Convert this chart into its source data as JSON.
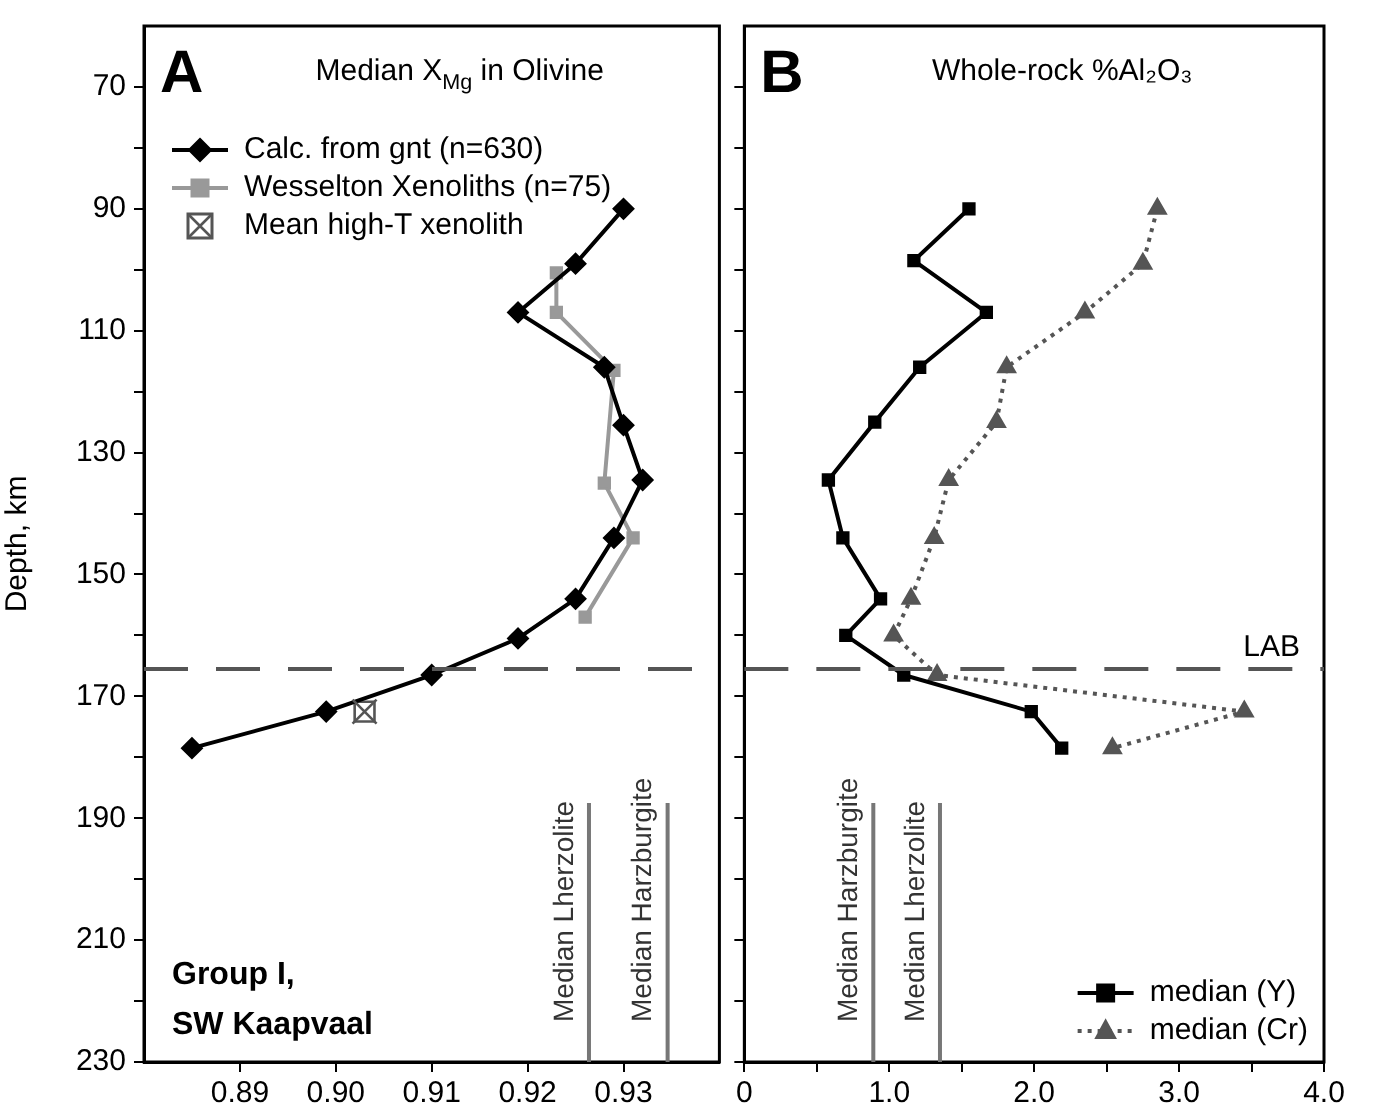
{
  "chart_data": [
    {
      "type": "line",
      "title": "Median X$_{Mg}$ in Olivine",
      "ylabel": "Depth, km",
      "xlim": [
        0.88,
        0.94
      ],
      "xticks": [
        0.89,
        {
          "value": 0.9,
          "label": "0.90"
        },
        0.91,
        0.92,
        0.93
      ],
      "ylim": [
        230,
        60
      ],
      "yticks": [
        70,
        {
          "value": 80,
          "label": null
        },
        90,
        {
          "value": 100,
          "label": null
        },
        110,
        {
          "value": 120,
          "label": null
        },
        130,
        {
          "value": 140,
          "label": null
        },
        150,
        {
          "value": 160,
          "label": null
        },
        170,
        {
          "value": 180,
          "label": null
        },
        190,
        {
          "value": 200,
          "label": null
        },
        210,
        {
          "value": 220,
          "label": null
        },
        230
      ],
      "legend": "top left",
      "series": [
        {
          "name": "Calc. from gnt (n=630)",
          "color": "#000000",
          "marker": "diamond",
          "x": [
            0.93,
            0.925,
            0.919,
            0.928,
            0.93,
            0.932,
            0.929,
            0.925,
            0.919,
            0.91,
            0.899,
            0.885
          ],
          "values": [
            90,
            99,
            107,
            116,
            125.5,
            134.5,
            144,
            154,
            160.5,
            166.5,
            172.5,
            178.5
          ]
        },
        {
          "name": "Wesselton Xenoliths (n=75)",
          "color": "#999999",
          "marker": "square",
          "x": [
            0.923,
            0.923,
            0.929,
            0.928,
            0.931,
            0.926
          ],
          "values": [
            100.5,
            107,
            116.5,
            135,
            144,
            157
          ]
        },
        {
          "name": "Mean high-T xenolith",
          "type": "scatter",
          "color": "#555555",
          "marker": "square",
          "x": [
            0.903
          ],
          "values": [
            172.5
          ]
        }
      ],
      "ref_lines": [
        {
          "axis": "y",
          "value": 165.5,
          "line_style": "dashed",
          "color": "#555555"
        },
        {
          "axis": "x",
          "value": 0.9264,
          "label": "Median Lherzolite",
          "color": "#777777"
        },
        {
          "axis": "x",
          "value": 0.9346,
          "label": "Median Harzburgite",
          "color": "#777777"
        }
      ],
      "annotations": [
        "A",
        "Group I,\nSW Kaapvaal"
      ]
    },
    {
      "type": "line",
      "title": "Whole-rock %Al₂O₃",
      "xlim": [
        0,
        4
      ],
      "xticks": [
        0,
        {
          "value": 0.5,
          "label": null
        },
        {
          "value": 1,
          "label": "1.0"
        },
        {
          "value": 1.5,
          "label": null
        },
        {
          "value": 2,
          "label": "2.0"
        },
        {
          "value": 2.5,
          "label": null
        },
        {
          "value": 3,
          "label": "3.0"
        },
        {
          "value": 3.5,
          "label": null
        },
        {
          "value": 4,
          "label": "4.0"
        }
      ],
      "ylim": [
        230,
        60
      ],
      "yticks": [
        70,
        80,
        90,
        100,
        110,
        120,
        130,
        140,
        150,
        160,
        170,
        180,
        190,
        200,
        210,
        220,
        230
      ],
      "tick_labels": "x",
      "legend": "bottom right",
      "series": [
        {
          "name": "median (Y)",
          "color": "#000000",
          "marker": "square",
          "x": [
            1.55,
            1.17,
            1.67,
            1.21,
            0.9,
            0.58,
            0.68,
            0.94,
            0.7,
            1.1,
            1.98,
            2.19
          ],
          "values": [
            90,
            98.5,
            107,
            116,
            125,
            134.5,
            144,
            154,
            160,
            166.5,
            172.5,
            178.5
          ]
        },
        {
          "name": "median (Cr)",
          "color": "#555555",
          "marker": "triangle",
          "line_style": "dotted",
          "x": [
            2.85,
            2.75,
            2.35,
            1.81,
            1.74,
            1.41,
            1.31,
            1.15,
            1.03,
            1.33,
            3.45,
            2.54
          ],
          "values": [
            90,
            99,
            107,
            116,
            125,
            134.5,
            144,
            154,
            160,
            166.5,
            172.5,
            178.5
          ]
        }
      ],
      "ref_lines": [
        {
          "axis": "y",
          "value": 165.5,
          "label": "LAB",
          "line_style": "dashed",
          "color": "#555555"
        },
        {
          "axis": "x",
          "value": 0.89,
          "label": "Median Harzburgite",
          "color": "#777777"
        },
        {
          "axis": "x",
          "value": 1.35,
          "label": "Median Lherzolite",
          "color": "#777777"
        }
      ],
      "annotations": [
        "B"
      ]
    }
  ]
}
